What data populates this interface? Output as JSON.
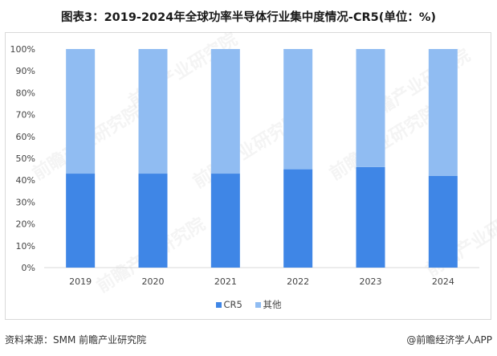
{
  "page": {
    "title": "图表3：2019-2024年全球功率半导体行业集中度情况-CR5(单位：%)",
    "watermark": "前瞻产业研究院",
    "footer_source": "资料来源：SMM 前瞻产业研究院",
    "footer_brand": "@前瞻经济学人APP"
  },
  "colors": {
    "cr5": "#3f86e6",
    "others": "#90bcf2",
    "axis": "#d9d9d9"
  },
  "chart_data": {
    "type": "bar",
    "stacked": true,
    "title": "2019-2024年全球功率半导体行业集中度情况-CR5(单位：%)",
    "categories": [
      "2019",
      "2020",
      "2021",
      "2022",
      "2023",
      "2024"
    ],
    "series": [
      {
        "name": "CR5",
        "values": [
          43,
          43,
          43,
          45,
          46,
          42
        ]
      },
      {
        "name": "其他",
        "values": [
          57,
          57,
          57,
          55,
          54,
          58
        ]
      }
    ],
    "ylim": [
      0,
      100
    ],
    "yticks": [
      "0%",
      "10%",
      "20%",
      "30%",
      "40%",
      "50%",
      "60%",
      "70%",
      "80%",
      "90%",
      "100%"
    ],
    "legend": "bottom",
    "xlabel": "",
    "ylabel": ""
  }
}
